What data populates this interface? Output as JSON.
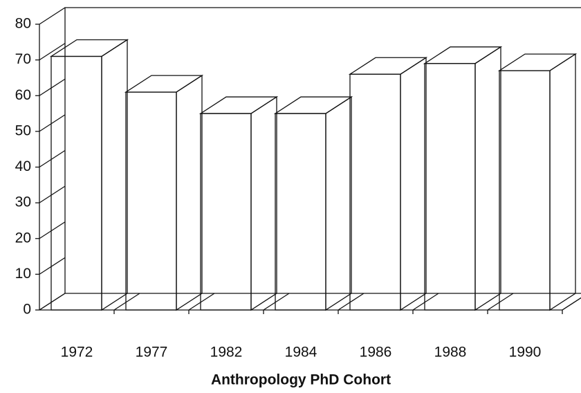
{
  "chart_data": {
    "type": "bar3d",
    "x_label": "Anthropology PhD Cohort",
    "categories": [
      "1972",
      "1977",
      "1982",
      "1984",
      "1986",
      "1988",
      "1990"
    ],
    "values": [
      71,
      61,
      55,
      55,
      66,
      69,
      67
    ],
    "color": "#ffffff",
    "ylim": [
      0,
      80
    ],
    "yticks": [
      0,
      10,
      20,
      30,
      40,
      50,
      60,
      70,
      80
    ]
  }
}
